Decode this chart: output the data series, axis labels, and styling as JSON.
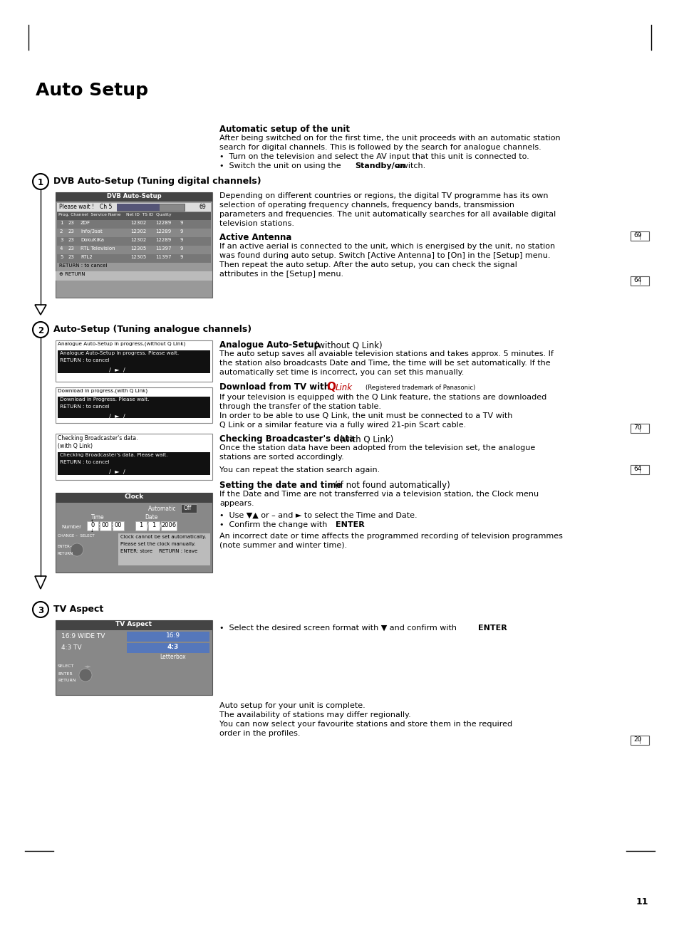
{
  "title": "Auto Setup",
  "bg_color": "#ffffff",
  "page_number": "11",
  "section1_title": "DVB Auto-Setup (Tuning digital channels)",
  "section2_title": "Auto-Setup (Tuning analogue channels)",
  "section3_title": "TV Aspect",
  "auto_setup_header": "Automatic setup of the unit",
  "auto_setup_text1a": "After being switched on for the first time, the unit proceeds with an automatic station",
  "auto_setup_text1b": "search for digital channels. This is followed by the search for analogue channels.",
  "auto_setup_bullet1": "Turn on the television and select the AV input that this unit is connected to.",
  "dvb_text": [
    "Depending on different countries or regions, the digital TV programme has its own",
    "selection of operating frequency channels, frequency bands, transmission",
    "parameters and frequencies. The unit automatically searches for all available digital",
    "television stations."
  ],
  "active_antenna_title": "Active Antenna",
  "active_antenna_text": [
    "If an active aerial is connected to the unit, which is energised by the unit, no station",
    "was found during auto setup. Switch [Active Antenna] to [On] in the [Setup] menu.",
    "Then repeat the auto setup. After the auto setup, you can check the signal",
    "attributes in the [Setup] menu."
  ],
  "analogue_text": [
    "The auto setup saves all avaiable television stations and takes approx. 5 minutes. If",
    "the station also broadcasts Date and Time, the time will be set automatically. If the",
    "automatically set time is incorrect, you can set this manually."
  ],
  "download_tv_text": [
    "If your television is equipped with the Q Link feature, the stations are downloaded",
    "through the transfer of the station table.",
    "In order to be able to use Q Link, the unit must be connected to a TV with",
    "Q Link or a similar feature via a fully wired 21-pin Scart cable."
  ],
  "checking_text1": [
    "Once the station data have been adopted from the television set, the analogue",
    "stations are sorted accordingly."
  ],
  "checking_text2": "You can repeat the station search again.",
  "setting_text1": [
    "If the Date and Time are not transferred via a television station, the Clock menu",
    "appears."
  ],
  "setting_text2": [
    "An incorrect date or time affects the programmed recording of television programmes",
    "(note summer and winter time)."
  ],
  "tv_aspect_text": [
    "Auto setup for your unit is complete.",
    "The availability of stations may differ regionally.",
    "You can now select your favourite stations and store them in the required",
    "order in the profiles."
  ],
  "dvb_rows": [
    [
      "1",
      "23",
      "ZDF",
      "12302",
      "12289",
      "9"
    ],
    [
      "2",
      "23",
      "Info/3sat",
      "12302",
      "12289",
      "9"
    ],
    [
      "3",
      "23",
      "DokuKiKa",
      "12302",
      "12289",
      "9"
    ],
    [
      "4",
      "23",
      "RTL Television",
      "12305",
      "11397",
      "9"
    ],
    [
      "5",
      "23",
      "RTL2",
      "12305",
      "11397",
      "9"
    ]
  ]
}
